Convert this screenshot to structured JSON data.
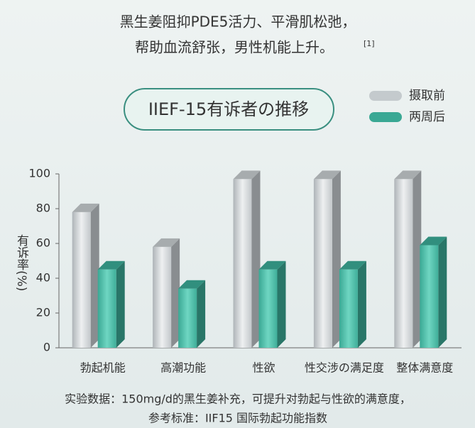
{
  "header": {
    "line1": "黑生姜阻抑PDE5活力、平滑肌松弛，",
    "line2": "帮助血流舒张，男性机能上升。",
    "ref": "[1]"
  },
  "chart_data": {
    "type": "bar3d",
    "title": "IIEF-15有诉者の推移",
    "y_label": "有诉率(%)",
    "categories": [
      "勃起机能",
      "高潮功能",
      "性欲",
      "性交涉の满足度",
      "整体满意度"
    ],
    "series": [
      {
        "name": "摄取前",
        "color": "#c4cacd",
        "values": [
          78,
          58,
          97,
          97,
          97
        ]
      },
      {
        "name": "两周后",
        "color": "#3aa894",
        "values": [
          45,
          34,
          45,
          45,
          59
        ]
      }
    ],
    "ylim": [
      0,
      100
    ],
    "yticks": [
      0,
      20,
      40,
      60,
      80,
      100
    ],
    "legend": "top-right"
  },
  "footer": {
    "line1": "实验数据：150mg/d的黑生姜补充，可提升对勃起与性欲的满意度，",
    "line2": "参考标准：IIF15 国际勃起功能指数"
  }
}
